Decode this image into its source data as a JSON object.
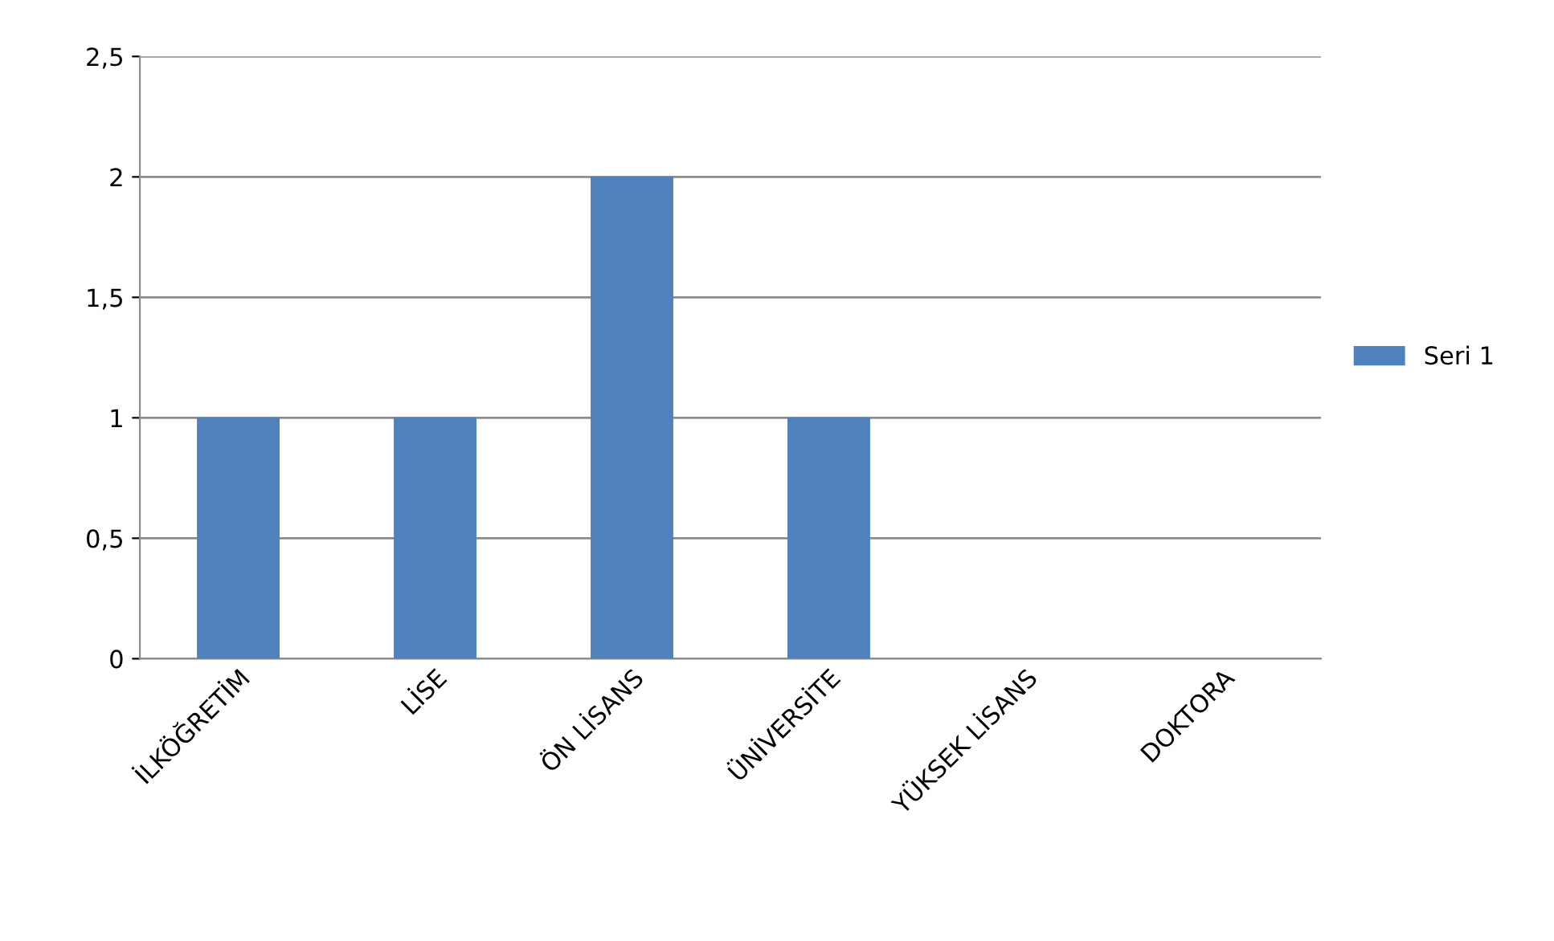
{
  "chart_data": {
    "type": "bar",
    "categories": [
      "İLKÖĞRETİM",
      "LİSE",
      "ÖN LİSANS",
      "ÜNİVERSİTE",
      "YÜKSEK LİSANS",
      "DOKTORA"
    ],
    "series": [
      {
        "name": "Seri 1",
        "color": "#4f81bd",
        "values": [
          1,
          1,
          2,
          1,
          0,
          0
        ]
      }
    ],
    "ylim": [
      0,
      2.5
    ],
    "yticks": [
      0,
      {
        "value": 0.5,
        "label": "0,5"
      },
      1,
      {
        "value": 1.5,
        "label": "1,5"
      },
      2,
      {
        "value": 2.5,
        "label": "2,5"
      }
    ],
    "grid": "y",
    "legend": "right"
  }
}
